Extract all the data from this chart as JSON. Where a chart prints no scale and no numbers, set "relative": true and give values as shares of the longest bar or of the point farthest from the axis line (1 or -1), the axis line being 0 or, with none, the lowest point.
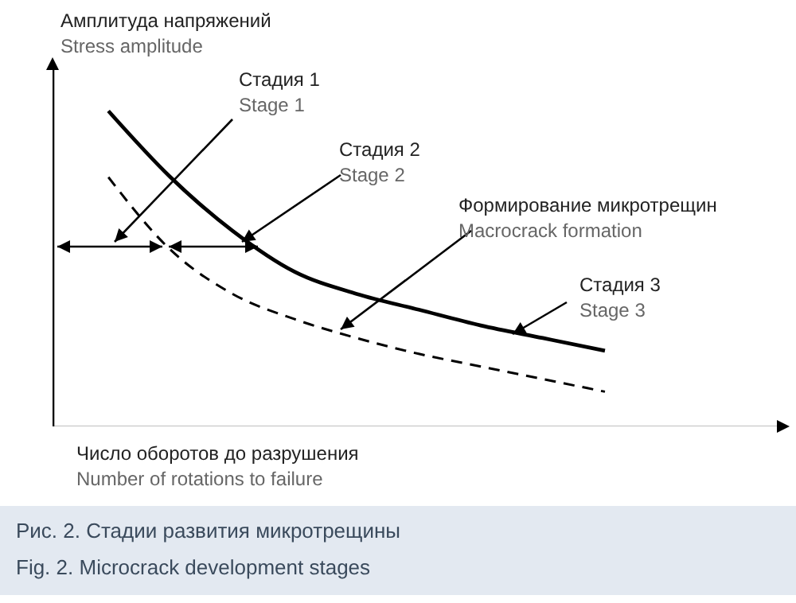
{
  "chart_data": {
    "type": "line",
    "relative": true,
    "title": "Рис. 2. Стадии развития микротрещины\nFig. 2. Microcrack development stages",
    "ylabel": "Амплитуда напряжений\nStress amplitude",
    "xlabel": "Число оборотов до разрушения\nNumber of rotations to failure",
    "categories": [
      null,
      null,
      null,
      null,
      null,
      null,
      null,
      null,
      null
    ],
    "series": [
      {
        "color": "#000000",
        "line_style": "solid",
        "values": [
          1.0,
          0.79,
          0.62,
          0.49,
          0.42,
          0.37,
          0.32,
          0.28,
          0.24
        ]
      },
      {
        "color": "#000000",
        "line_style": "dashed",
        "values": [
          0.79,
          0.56,
          0.42,
          0.34,
          0.28,
          0.23,
          0.19,
          0.15,
          0.11
        ]
      }
    ],
    "annotations": [
      "Стадия 1\nStage 1",
      "Стадия 2\nStage 2",
      "Формирование микротрещин\nMacrocrack formation",
      "Стадия 3\nStage 3"
    ]
  }
}
